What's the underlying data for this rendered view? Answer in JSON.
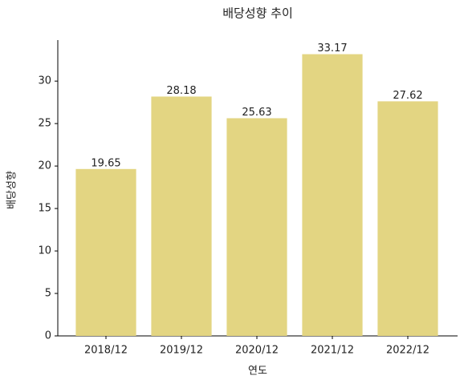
{
  "chart_data": {
    "type": "bar",
    "title": "배당성향 추이",
    "x_label": "연도",
    "y_label": "배당성향",
    "categories": [
      "2018/12",
      "2019/12",
      "2020/12",
      "2021/12",
      "2022/12"
    ],
    "values": [
      19.65,
      28.18,
      25.63,
      33.17,
      27.62
    ],
    "color": "#e3d582",
    "ylim": [
      0,
      34.83
    ],
    "yticks": [
      0,
      5,
      10,
      15,
      20,
      25,
      30
    ],
    "grid": false
  }
}
